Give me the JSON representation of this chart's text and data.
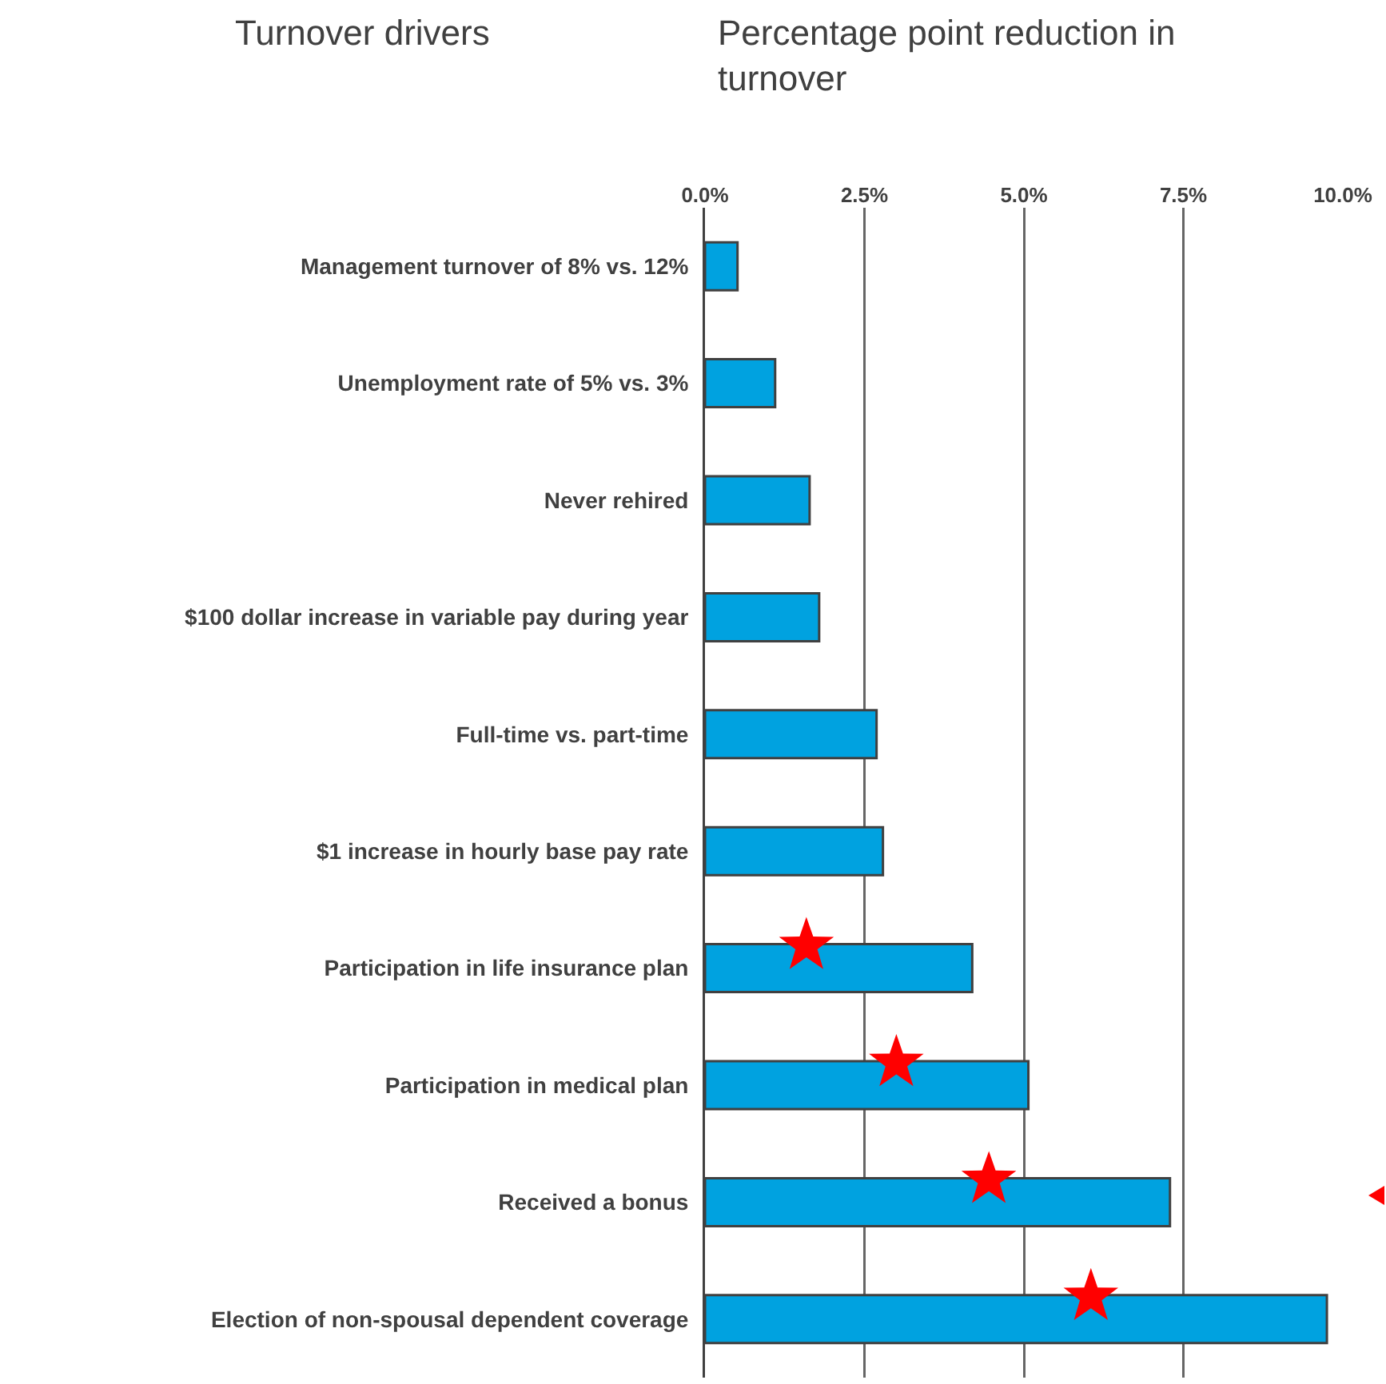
{
  "chart_data": {
    "type": "bar",
    "orientation": "horizontal",
    "xlabel": "Percentage point reduction in turnover",
    "ylabel": "Turnover drivers",
    "categories": [
      "Management turnover of 8% vs. 12%",
      "Unemployment rate of 5% vs. 3%",
      "Never rehired",
      "$100 dollar increase in variable pay during year",
      "Full-time vs. part-time",
      "$1 increase in hourly base pay rate",
      "Participation in life insurance plan",
      "Participation in medical plan",
      "Received a bonus",
      "Election of non-spousal dependent coverage"
    ],
    "values": [
      0.51,
      1.1,
      1.64,
      1.79,
      2.69,
      2.79,
      4.19,
      5.07,
      7.29,
      9.75
    ],
    "color": "#00a2e0",
    "xlim": [
      0,
      10
    ],
    "xticks": [
      {
        "value": 0,
        "label": "0.0%"
      },
      {
        "value": 2.5,
        "label": "2.5%"
      },
      {
        "value": 5,
        "label": "5.0%"
      },
      {
        "value": 7.5,
        "label": "7.5%"
      },
      {
        "value": 10,
        "label": "10.0%"
      }
    ],
    "grid": "x"
  }
}
